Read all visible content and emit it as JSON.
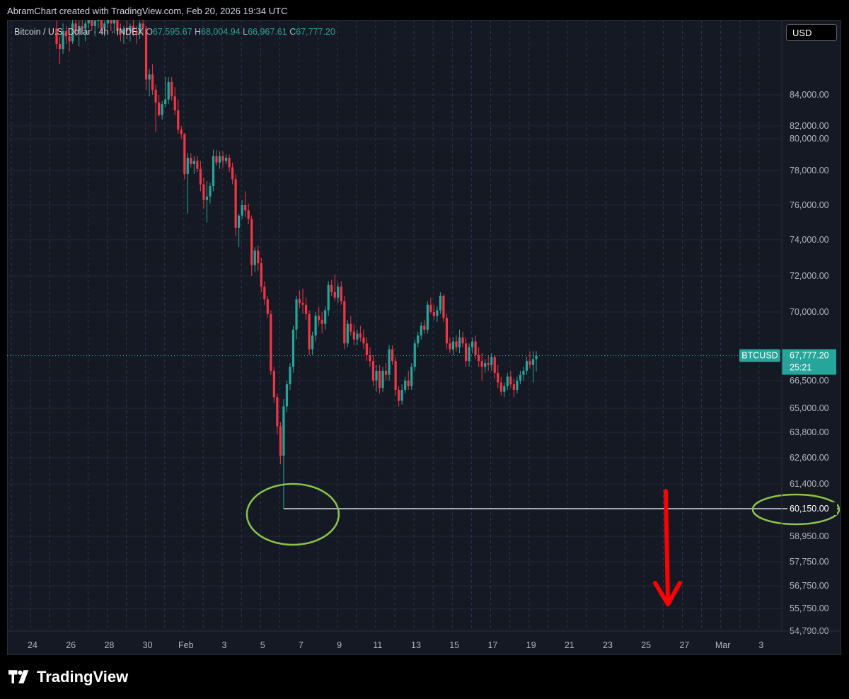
{
  "header": {
    "caption": "AbramChart created with TradingView.com, Feb 20, 2026 19:34 UTC"
  },
  "legend": {
    "symbol": "Bitcoin / U.S. Dollar · 4h · INDEX",
    "open_label": "O",
    "open": "67,595.67",
    "high_label": "H",
    "high": "68,004.94",
    "low_label": "L",
    "low": "66,967.61",
    "close_label": "C",
    "close": "67,777.20"
  },
  "currency_button": "USD",
  "logo": {
    "text": "TradingView",
    "icon": "tradingview-logo-icon"
  },
  "colors": {
    "up": "#26a69a",
    "down": "#f23645",
    "background": "#151924",
    "grid": "#2a2e39",
    "annotation_circle": "#8bc34a",
    "annotation_arrow": "#ff0000",
    "support_line": "#ffffff"
  },
  "chart_data": {
    "type": "candlestick",
    "interval": "4h",
    "y_ticks": [
      "84,000.00",
      "82,000.00",
      "80,000.00",
      "78,000.00",
      "76,000.00",
      "74,000.00",
      "72,000.00",
      "70,000.00",
      "66,500.00",
      "65,000.00",
      "63,800.00",
      "62,600.00",
      "61,400.00",
      "58,950.00",
      "57,750.00",
      "56,750.00",
      "55,750.00",
      "54,790.00"
    ],
    "x_ticks": [
      "24",
      "26",
      "28",
      "30",
      "Feb",
      "3",
      "5",
      "7",
      "9",
      "11",
      "13",
      "15",
      "17",
      "19",
      "21",
      "23",
      "25",
      "27",
      "Mar",
      "3"
    ],
    "current_price": {
      "symbol": "BTCUSD",
      "value": "67,777.20",
      "countdown": "25:21"
    },
    "support_level": {
      "value": 60150,
      "label": "60,150.00"
    },
    "annotations": {
      "circles": [
        "low wick",
        "60,150.00 price label"
      ],
      "arrow": "down"
    },
    "candles": [
      [
        1,
        86600,
        86900,
        85800,
        86000
      ],
      [
        2,
        86000,
        86300,
        85200,
        85800
      ],
      [
        3,
        85800,
        86800,
        85600,
        86500
      ],
      [
        4,
        86500,
        86700,
        86000,
        86300
      ],
      [
        5,
        86300,
        86600,
        85700,
        86100
      ],
      [
        6,
        86100,
        87000,
        86000,
        86800
      ],
      [
        7,
        86800,
        87100,
        86300,
        86500
      ],
      [
        8,
        86500,
        86900,
        85900,
        86700
      ],
      [
        9,
        86700,
        87200,
        86400,
        86600
      ],
      [
        10,
        86600,
        86900,
        86100,
        86800
      ],
      [
        11,
        86800,
        87200,
        86600,
        87000
      ],
      [
        12,
        87000,
        87300,
        86500,
        86700
      ],
      [
        13,
        86700,
        87000,
        86300,
        86900
      ],
      [
        14,
        86900,
        87200,
        86600,
        87000
      ],
      [
        15,
        87000,
        87300,
        86400,
        86600
      ],
      [
        16,
        86600,
        86900,
        86300,
        86800
      ],
      [
        17,
        86800,
        87200,
        86600,
        87000
      ],
      [
        18,
        87000,
        87400,
        86500,
        86800
      ],
      [
        19,
        86800,
        87100,
        86400,
        87000
      ],
      [
        20,
        87000,
        87200,
        86300,
        86500
      ],
      [
        21,
        86500,
        86800,
        86100,
        86400
      ],
      [
        22,
        86400,
        86700,
        86000,
        86600
      ],
      [
        23,
        86600,
        86900,
        86200,
        86500
      ],
      [
        24,
        86500,
        86800,
        86100,
        86700
      ],
      [
        25,
        86700,
        87000,
        86300,
        86500
      ],
      [
        26,
        86500,
        86700,
        86000,
        86400
      ],
      [
        27,
        86400,
        86900,
        86200,
        86800
      ],
      [
        28,
        86800,
        87000,
        86300,
        86600
      ],
      [
        29,
        86600,
        86700,
        84200,
        84600
      ],
      [
        30,
        84600,
        85000,
        83900,
        84800
      ],
      [
        31,
        84800,
        85200,
        84000,
        84200
      ],
      [
        32,
        84200,
        84400,
        81000,
        83500
      ],
      [
        33,
        83500,
        84000,
        82600,
        82700
      ],
      [
        34,
        82700,
        83600,
        82400,
        83400
      ],
      [
        35,
        83400,
        84700,
        83200,
        83700
      ],
      [
        36,
        83700,
        84700,
        83400,
        84500
      ],
      [
        37,
        84500,
        84700,
        83600,
        83900
      ],
      [
        38,
        83900,
        84300,
        82700,
        83000
      ],
      [
        39,
        83000,
        83700,
        80800,
        81400
      ],
      [
        40,
        81400,
        82000,
        80000,
        80700
      ],
      [
        41,
        80700,
        80900,
        77500,
        77800
      ],
      [
        42,
        77800,
        79100,
        75500,
        78800
      ],
      [
        43,
        78800,
        79100,
        78200,
        78400
      ],
      [
        44,
        78400,
        78900,
        77800,
        78600
      ],
      [
        45,
        78600,
        78900,
        77900,
        78100
      ],
      [
        46,
        78100,
        78600,
        76800,
        77200
      ],
      [
        47,
        77200,
        77600,
        75800,
        76300
      ],
      [
        48,
        76300,
        77400,
        75000,
        76500
      ],
      [
        49,
        76500,
        77300,
        76100,
        77100
      ],
      [
        50,
        77100,
        79300,
        76800,
        78900
      ],
      [
        51,
        78900,
        79300,
        78300,
        78500
      ],
      [
        52,
        78500,
        79200,
        78100,
        78900
      ],
      [
        53,
        78900,
        79200,
        78200,
        78600
      ],
      [
        54,
        78600,
        79000,
        78400,
        78800
      ],
      [
        55,
        78800,
        79000,
        77900,
        78200
      ],
      [
        56,
        78200,
        78500,
        77200,
        77500
      ],
      [
        57,
        77500,
        77800,
        74200,
        74700
      ],
      [
        58,
        74700,
        75500,
        73600,
        75400
      ],
      [
        59,
        75400,
        76300,
        75200,
        76000
      ],
      [
        60,
        76000,
        76800,
        75300,
        75700
      ],
      [
        61,
        75700,
        76100,
        74900,
        75200
      ],
      [
        62,
        75200,
        75400,
        72000,
        72600
      ],
      [
        63,
        72600,
        73600,
        72200,
        73400
      ],
      [
        64,
        73400,
        73700,
        72300,
        72700
      ],
      [
        65,
        72700,
        73000,
        71100,
        71400
      ],
      [
        66,
        71400,
        71700,
        70400,
        70700
      ],
      [
        67,
        70700,
        70900,
        69700,
        69900
      ],
      [
        68,
        69900,
        70100,
        66800,
        67000
      ],
      [
        69,
        67000,
        67200,
        65300,
        65600
      ],
      [
        70,
        65600,
        65800,
        63700,
        64100
      ],
      [
        71,
        64100,
        64300,
        62300,
        62700
      ],
      [
        72,
        62700,
        65500,
        60150,
        65100
      ],
      [
        73,
        65100,
        66500,
        64800,
        66300
      ],
      [
        74,
        66300,
        67400,
        66000,
        67200
      ],
      [
        75,
        67200,
        69300,
        66900,
        69100
      ],
      [
        76,
        69100,
        70900,
        68600,
        70700
      ],
      [
        77,
        70700,
        71200,
        70200,
        70500
      ],
      [
        78,
        70500,
        71300,
        69900,
        70400
      ],
      [
        79,
        70400,
        70800,
        69600,
        69900
      ],
      [
        80,
        69900,
        70100,
        67800,
        68100
      ],
      [
        81,
        68100,
        69000,
        67800,
        68800
      ],
      [
        82,
        68800,
        70000,
        68500,
        69800
      ],
      [
        83,
        69800,
        70300,
        69300,
        69600
      ],
      [
        84,
        69600,
        70000,
        68900,
        69400
      ],
      [
        85,
        69400,
        70300,
        69100,
        70100
      ],
      [
        86,
        70100,
        71700,
        69800,
        71500
      ],
      [
        87,
        71500,
        71800,
        70900,
        71100
      ],
      [
        88,
        71100,
        72100,
        70600,
        70800
      ],
      [
        89,
        70800,
        71600,
        70500,
        71400
      ],
      [
        90,
        71400,
        71700,
        70400,
        70600
      ],
      [
        91,
        70600,
        70900,
        68100,
        68400
      ],
      [
        92,
        68400,
        69600,
        68200,
        69400
      ],
      [
        93,
        69400,
        69800,
        68800,
        69000
      ],
      [
        94,
        69000,
        69400,
        68300,
        68600
      ],
      [
        95,
        68600,
        69100,
        68300,
        68900
      ],
      [
        96,
        68900,
        69300,
        68500,
        68700
      ],
      [
        97,
        68700,
        69100,
        68100,
        68400
      ],
      [
        98,
        68400,
        68700,
        67500,
        67800
      ],
      [
        99,
        67800,
        68200,
        67200,
        67500
      ],
      [
        100,
        67500,
        67800,
        66200,
        66500
      ],
      [
        101,
        66500,
        67300,
        65900,
        67000
      ],
      [
        102,
        67000,
        67300,
        65800,
        66100
      ],
      [
        103,
        66100,
        67200,
        65900,
        67000
      ],
      [
        104,
        67000,
        67400,
        66500,
        66800
      ],
      [
        105,
        66800,
        68300,
        66500,
        68100
      ],
      [
        106,
        68100,
        68300,
        67300,
        67500
      ],
      [
        107,
        67500,
        67700,
        65700,
        66000
      ],
      [
        108,
        66000,
        66200,
        65100,
        65400
      ],
      [
        109,
        65400,
        66300,
        65200,
        66000
      ],
      [
        110,
        66000,
        66700,
        65800,
        66500
      ],
      [
        111,
        66500,
        67000,
        66000,
        66200
      ],
      [
        112,
        66200,
        67400,
        66000,
        67200
      ],
      [
        113,
        67200,
        68600,
        67000,
        68400
      ],
      [
        114,
        68400,
        69000,
        68200,
        68800
      ],
      [
        115,
        68800,
        69500,
        68600,
        69300
      ],
      [
        116,
        69300,
        69600,
        68900,
        69100
      ],
      [
        117,
        69100,
        70600,
        68900,
        70400
      ],
      [
        118,
        70400,
        70800,
        69900,
        70000
      ],
      [
        119,
        70000,
        70400,
        69600,
        69800
      ],
      [
        120,
        69800,
        70300,
        69500,
        70100
      ],
      [
        121,
        70100,
        71100,
        69900,
        70900
      ],
      [
        122,
        70900,
        71000,
        69500,
        69700
      ],
      [
        123,
        69700,
        69900,
        68100,
        68400
      ],
      [
        124,
        68400,
        68700,
        67900,
        68100
      ],
      [
        125,
        68100,
        68700,
        67800,
        68500
      ],
      [
        126,
        68500,
        68800,
        68000,
        68200
      ],
      [
        127,
        68200,
        69100,
        67900,
        68700
      ],
      [
        128,
        68700,
        69000,
        68200,
        68400
      ],
      [
        129,
        68400,
        68700,
        67200,
        67500
      ],
      [
        130,
        67500,
        68400,
        67200,
        68200
      ],
      [
        131,
        68200,
        68700,
        67900,
        68500
      ],
      [
        132,
        68500,
        68800,
        67600,
        67800
      ],
      [
        133,
        67800,
        68200,
        67200,
        67500
      ],
      [
        134,
        67500,
        67900,
        66500,
        67200
      ],
      [
        135,
        67200,
        67600,
        66900,
        67400
      ],
      [
        136,
        67400,
        67800,
        67000,
        67300
      ],
      [
        137,
        67300,
        67900,
        67000,
        67700
      ],
      [
        138,
        67700,
        67800,
        66600,
        66900
      ],
      [
        139,
        66900,
        67300,
        66100,
        66400
      ],
      [
        140,
        66400,
        66700,
        65700,
        65900
      ],
      [
        141,
        65900,
        66400,
        65600,
        66200
      ],
      [
        142,
        66200,
        66900,
        66000,
        66700
      ],
      [
        143,
        66700,
        67000,
        66100,
        66300
      ],
      [
        144,
        66300,
        66600,
        65600,
        66000
      ],
      [
        145,
        66000,
        66700,
        65800,
        66500
      ],
      [
        146,
        66500,
        67000,
        66300,
        66800
      ],
      [
        147,
        66800,
        67200,
        66500,
        67000
      ],
      [
        148,
        67000,
        67700,
        66800,
        67500
      ],
      [
        149,
        67500,
        68000,
        67100,
        67300
      ],
      [
        150,
        67300,
        68000,
        66400,
        67596
      ],
      [
        151,
        67596,
        68005,
        66968,
        67777
      ]
    ]
  }
}
